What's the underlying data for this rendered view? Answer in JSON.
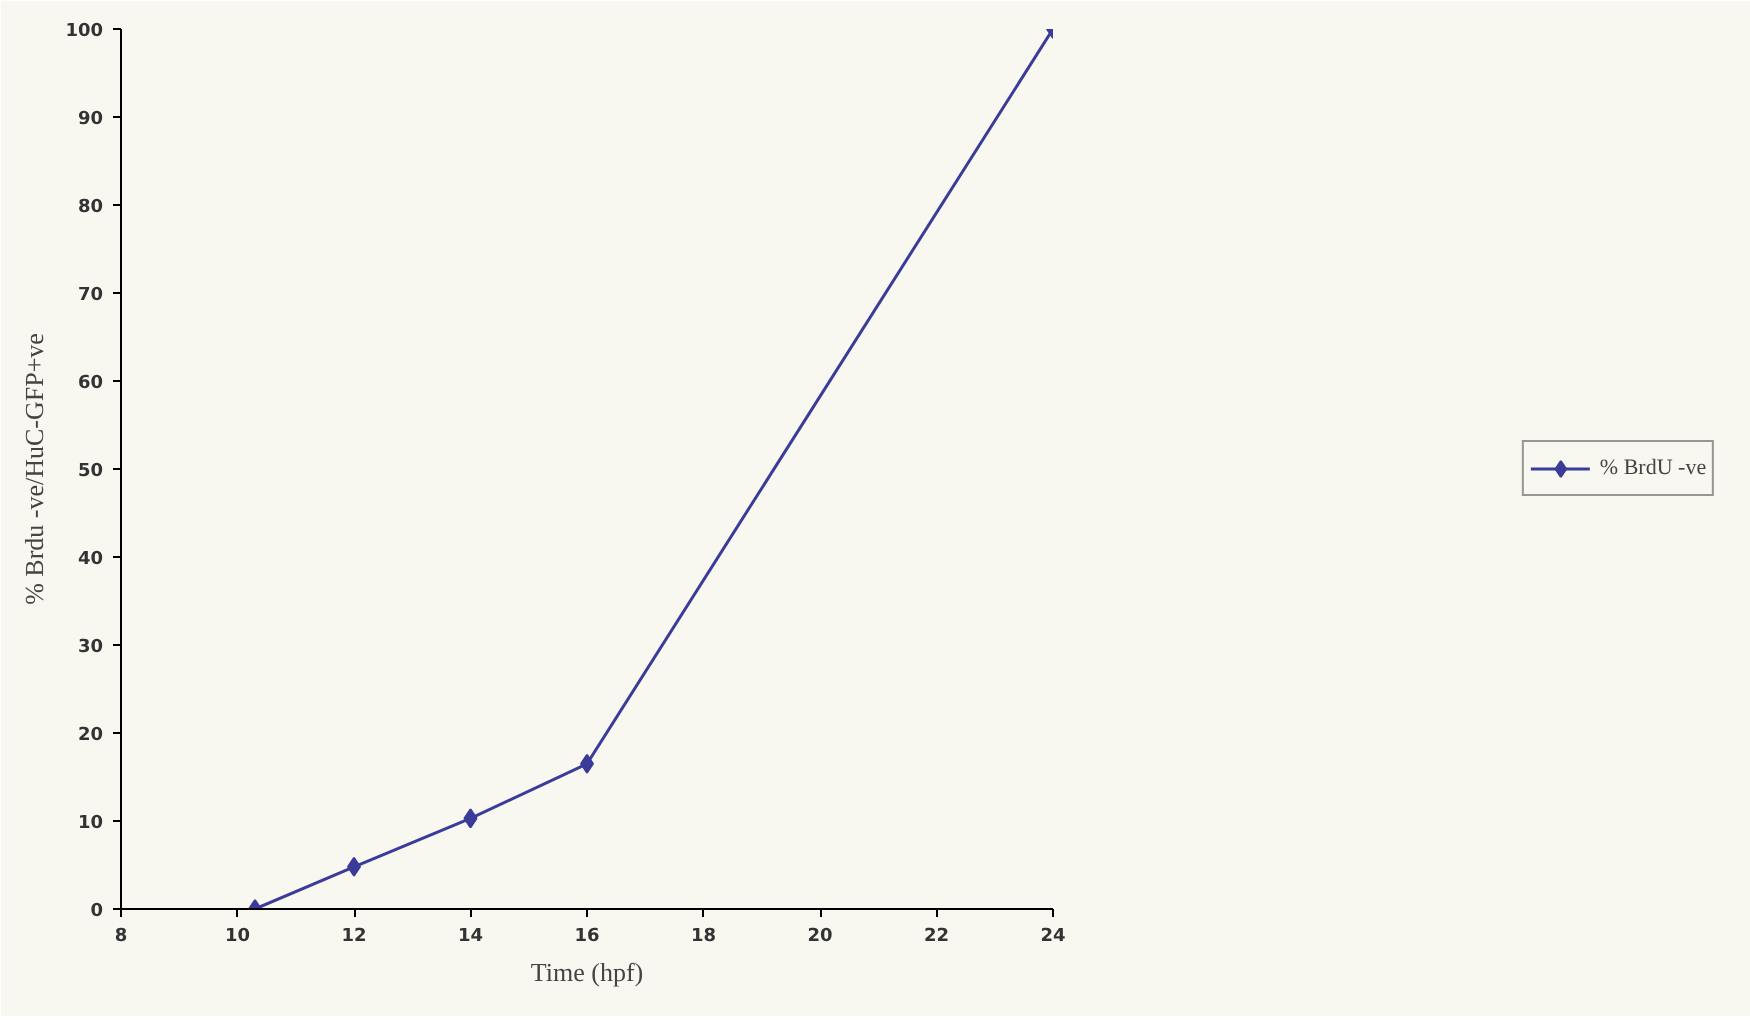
{
  "chart_data": {
    "type": "line",
    "xlabel": "Time (hpf)",
    "ylabel": "% Brdu -ve/HuC-GFP+ve",
    "x": [
      10.3,
      12,
      14,
      16,
      24
    ],
    "series": [
      {
        "name": "% BrdU -ve",
        "color": "#3b3b9a",
        "values": [
          0,
          4.8,
          10.3,
          16.5,
          100
        ]
      }
    ],
    "xlim": [
      8,
      24
    ],
    "xticks": [
      8,
      10,
      12,
      14,
      16,
      18,
      20,
      22,
      24
    ],
    "ylim": [
      0,
      100
    ],
    "yticks": [
      0,
      10,
      20,
      30,
      40,
      50,
      60,
      70,
      80,
      90,
      100
    ],
    "grid": false,
    "legend": "right",
    "marker": "diamond",
    "line_style": "solid"
  }
}
